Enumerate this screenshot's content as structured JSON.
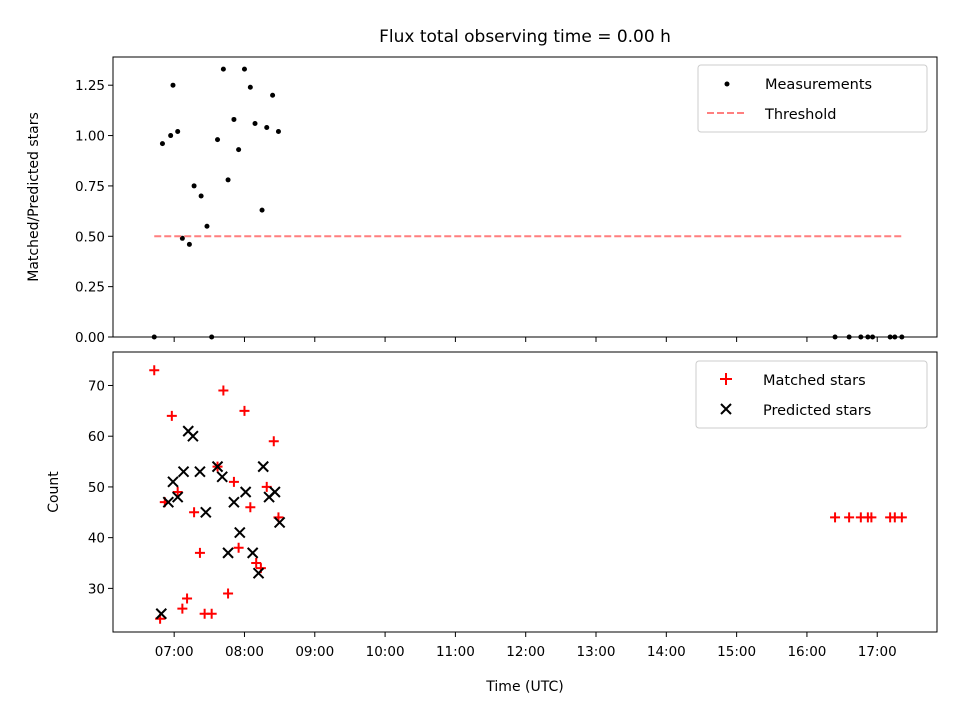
{
  "chart_data": {
    "title": "Flux total observing time = 0.00 h",
    "xlabel": "Time (UTC)",
    "x_tick_labels": [
      "07:00",
      "08:00",
      "09:00",
      "10:00",
      "11:00",
      "12:00",
      "13:00",
      "14:00",
      "15:00",
      "16:00",
      "17:00"
    ],
    "x_tick_hours": [
      7,
      8,
      9,
      10,
      11,
      12,
      13,
      14,
      15,
      16,
      17
    ],
    "xlim_hours": [
      6.13,
      17.85
    ],
    "panels": [
      {
        "type": "scatter",
        "ylabel": "Matched/Predicted stars",
        "ylim": [
          0.0,
          1.39
        ],
        "y_ticks": [
          0.0,
          0.25,
          0.5,
          0.75,
          1.0,
          1.25
        ],
        "y_tick_labels": [
          "0.00",
          "0.25",
          "0.50",
          "0.75",
          "1.00",
          "1.25"
        ],
        "legend_position": "upper right",
        "series": [
          {
            "name": "Measurements",
            "marker": "dot",
            "color": "#000000",
            "points": [
              [
                "06:43",
                0.0
              ],
              [
                "06:50",
                0.96
              ],
              [
                "06:57",
                1.0
              ],
              [
                "06:59",
                1.25
              ],
              [
                "07:03",
                1.02
              ],
              [
                "07:07",
                0.49
              ],
              [
                "07:13",
                0.46
              ],
              [
                "07:17",
                0.75
              ],
              [
                "07:23",
                0.7
              ],
              [
                "07:28",
                0.55
              ],
              [
                "07:32",
                0.0
              ],
              [
                "07:37",
                0.98
              ],
              [
                "07:42",
                1.33
              ],
              [
                "07:46",
                0.78
              ],
              [
                "07:51",
                1.08
              ],
              [
                "07:55",
                0.93
              ],
              [
                "08:00",
                1.33
              ],
              [
                "08:05",
                1.24
              ],
              [
                "08:09",
                1.06
              ],
              [
                "08:15",
                0.63
              ],
              [
                "08:19",
                1.04
              ],
              [
                "08:24",
                1.2
              ],
              [
                "08:29",
                1.02
              ],
              [
                "16:24",
                0.0
              ],
              [
                "16:36",
                0.0
              ],
              [
                "16:46",
                0.0
              ],
              [
                "16:52",
                0.0
              ],
              [
                "16:56",
                0.0
              ],
              [
                "17:11",
                0.0
              ],
              [
                "17:15",
                0.0
              ],
              [
                "17:21",
                0.0
              ]
            ]
          },
          {
            "name": "Threshold",
            "line_style": "dashed",
            "color": "#ff7f7f",
            "points": [
              [
                "06:43",
                0.5
              ],
              [
                "17:21",
                0.5
              ]
            ]
          }
        ]
      },
      {
        "type": "scatter",
        "ylabel": "Count",
        "ylim": [
          21.4,
          76.6
        ],
        "y_ticks": [
          30,
          40,
          50,
          60,
          70
        ],
        "y_tick_labels": [
          "30",
          "40",
          "50",
          "60",
          "70"
        ],
        "legend_position": "upper right",
        "series": [
          {
            "name": "Matched stars",
            "marker": "plus",
            "color": "#ff0000",
            "points": [
              [
                "06:43",
                73
              ],
              [
                "06:48",
                24
              ],
              [
                "06:52",
                47
              ],
              [
                "06:58",
                64
              ],
              [
                "07:03",
                49
              ],
              [
                "07:07",
                26
              ],
              [
                "07:11",
                28
              ],
              [
                "07:17",
                45
              ],
              [
                "07:22",
                37
              ],
              [
                "07:26",
                25
              ],
              [
                "07:32",
                25
              ],
              [
                "07:37",
                54
              ],
              [
                "07:42",
                69
              ],
              [
                "07:46",
                29
              ],
              [
                "07:51",
                51
              ],
              [
                "07:55",
                38
              ],
              [
                "08:00",
                65
              ],
              [
                "08:05",
                46
              ],
              [
                "08:10",
                35
              ],
              [
                "08:14",
                34
              ],
              [
                "08:19",
                50
              ],
              [
                "08:25",
                59
              ],
              [
                "08:29",
                44
              ],
              [
                "16:24",
                44
              ],
              [
                "16:36",
                44
              ],
              [
                "16:46",
                44
              ],
              [
                "16:52",
                44
              ],
              [
                "16:55",
                44
              ],
              [
                "17:11",
                44
              ],
              [
                "17:15",
                44
              ],
              [
                "17:21",
                44
              ]
            ]
          },
          {
            "name": "Predicted stars",
            "marker": "x",
            "color": "#000000",
            "points": [
              [
                "06:49",
                25
              ],
              [
                "06:55",
                47
              ],
              [
                "06:59",
                51
              ],
              [
                "07:03",
                48
              ],
              [
                "07:08",
                53
              ],
              [
                "07:12",
                61
              ],
              [
                "07:16",
                60
              ],
              [
                "07:22",
                53
              ],
              [
                "07:27",
                45
              ],
              [
                "07:37",
                54
              ],
              [
                "07:41",
                52
              ],
              [
                "07:46",
                37
              ],
              [
                "07:51",
                47
              ],
              [
                "07:56",
                41
              ],
              [
                "08:01",
                49
              ],
              [
                "08:07",
                37
              ],
              [
                "08:12",
                33
              ],
              [
                "08:16",
                54
              ],
              [
                "08:21",
                48
              ],
              [
                "08:26",
                49
              ],
              [
                "08:30",
                43
              ]
            ]
          }
        ]
      }
    ]
  }
}
